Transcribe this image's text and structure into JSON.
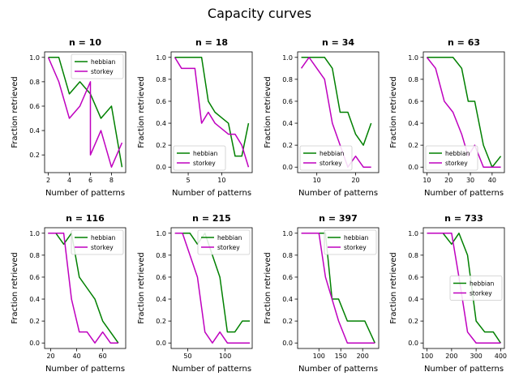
{
  "figure": {
    "title": "Capacity curves"
  },
  "colors": {
    "hebbian": "#008000",
    "storkey": "#bf00bf"
  },
  "chart_data": [
    {
      "type": "line",
      "title": "n = 10",
      "xlabel": "Number of patterns",
      "ylabel": "Fraction retrieved",
      "xlim": [
        1.65,
        9.35
      ],
      "ylim": [
        0.055,
        1.045
      ],
      "xticks": [
        2,
        4,
        6,
        8
      ],
      "yticks": [
        0.2,
        0.4,
        0.6,
        0.8,
        1.0
      ],
      "legend": "upper right",
      "series": [
        {
          "name": "hebbian",
          "x": [
            2,
            3,
            4,
            5,
            6,
            7,
            8,
            9
          ],
          "y": [
            1.0,
            1.0,
            0.7,
            0.8,
            0.7,
            0.5,
            0.6,
            0.1
          ]
        },
        {
          "name": "storkey",
          "x": [
            2,
            3,
            4,
            5,
            6,
            6,
            7,
            8,
            9
          ],
          "y": [
            1.0,
            0.8,
            0.5,
            0.6,
            0.8,
            0.2,
            0.4,
            0.1,
            0.3
          ]
        }
      ]
    },
    {
      "type": "line",
      "title": "n = 18",
      "xlabel": "Number of patterns",
      "ylabel": "Fraction retrieved",
      "xlim": [
        2.45,
        14.55
      ],
      "ylim": [
        -0.05,
        1.05
      ],
      "xticks": [
        5,
        10
      ],
      "yticks": [
        0.0,
        0.2,
        0.4,
        0.6,
        0.8,
        1.0
      ],
      "legend": "lower left",
      "series": [
        {
          "name": "hebbian",
          "x": [
            3,
            4,
            5,
            6,
            7,
            8,
            9,
            10,
            11,
            12,
            13,
            14
          ],
          "y": [
            1.0,
            1.0,
            1.0,
            1.0,
            1.0,
            0.6,
            0.5,
            0.45,
            0.4,
            0.1,
            0.1,
            0.4
          ]
        },
        {
          "name": "storkey",
          "x": [
            3,
            4,
            5,
            6,
            7,
            8,
            9,
            10,
            11,
            12,
            13,
            14
          ],
          "y": [
            1.0,
            0.9,
            0.9,
            0.9,
            0.4,
            0.5,
            0.4,
            0.35,
            0.3,
            0.3,
            0.2,
            0.0
          ]
        }
      ]
    },
    {
      "type": "line",
      "title": "n = 34",
      "xlabel": "Number of patterns",
      "ylabel": "Fraction retrieved",
      "xlim": [
        5.05,
        25.95
      ],
      "ylim": [
        -0.05,
        1.05
      ],
      "xticks": [
        10,
        20
      ],
      "yticks": [
        0.0,
        0.2,
        0.4,
        0.6,
        0.8,
        1.0
      ],
      "legend": "lower left",
      "series": [
        {
          "name": "hebbian",
          "x": [
            6,
            8,
            10,
            12,
            14,
            16,
            18,
            20,
            22,
            24
          ],
          "y": [
            1.0,
            1.0,
            1.0,
            1.0,
            0.9,
            0.5,
            0.5,
            0.3,
            0.2,
            0.4
          ]
        },
        {
          "name": "storkey",
          "x": [
            6,
            8,
            10,
            12,
            14,
            16,
            18,
            20,
            22,
            24
          ],
          "y": [
            0.9,
            1.0,
            0.9,
            0.8,
            0.4,
            0.2,
            0.0,
            0.1,
            0.0,
            0.0
          ]
        }
      ]
    },
    {
      "type": "line",
      "title": "n = 63",
      "xlabel": "Number of patterns",
      "ylabel": "Fraction retrieved",
      "xlim": [
        8.35,
        45.65
      ],
      "ylim": [
        -0.05,
        1.05
      ],
      "xticks": [
        10,
        20,
        30,
        40
      ],
      "yticks": [
        0.0,
        0.2,
        0.4,
        0.6,
        0.8,
        1.0
      ],
      "legend": "lower left",
      "series": [
        {
          "name": "hebbian",
          "x": [
            10,
            14,
            18,
            22,
            26,
            29,
            32,
            36,
            40,
            44
          ],
          "y": [
            1.0,
            1.0,
            1.0,
            1.0,
            0.9,
            0.6,
            0.6,
            0.2,
            0.0,
            0.1
          ]
        },
        {
          "name": "storkey",
          "x": [
            10,
            14,
            18,
            22,
            26,
            29,
            32,
            36,
            40,
            44
          ],
          "y": [
            1.0,
            0.9,
            0.6,
            0.5,
            0.3,
            0.1,
            0.2,
            0.0,
            0.0,
            0.0
          ]
        }
      ]
    },
    {
      "type": "line",
      "title": "n = 116",
      "xlabel": "Number of patterns",
      "ylabel": "Fraction retrieved",
      "xlim": [
        15.3,
        77.7
      ],
      "ylim": [
        -0.05,
        1.05
      ],
      "xticks": [
        20,
        40,
        60
      ],
      "yticks": [
        0.0,
        0.2,
        0.4,
        0.6,
        0.8,
        1.0
      ],
      "legend": "upper right",
      "series": [
        {
          "name": "hebbian",
          "x": [
            18,
            24,
            30,
            36,
            42,
            48,
            54,
            60,
            66,
            72
          ],
          "y": [
            1.0,
            1.0,
            0.9,
            1.0,
            0.6,
            0.5,
            0.4,
            0.2,
            0.1,
            0.0
          ]
        },
        {
          "name": "storkey",
          "x": [
            18,
            24,
            30,
            36,
            42,
            48,
            54,
            60,
            66,
            72
          ],
          "y": [
            1.0,
            1.0,
            1.0,
            0.4,
            0.1,
            0.1,
            0.0,
            0.1,
            0.0,
            0.0
          ]
        }
      ]
    },
    {
      "type": "line",
      "title": "n = 215",
      "xlabel": "Number of patterns",
      "ylabel": "Fraction retrieved",
      "xlim": [
        27.8,
        136.2
      ],
      "ylim": [
        -0.05,
        1.05
      ],
      "xticks": [
        50,
        100
      ],
      "yticks": [
        0.0,
        0.2,
        0.4,
        0.6,
        0.8,
        1.0
      ],
      "legend": "upper right",
      "series": [
        {
          "name": "hebbian",
          "x": [
            33,
            43,
            53,
            63,
            73,
            83,
            93,
            103,
            113,
            123,
            133
          ],
          "y": [
            1.0,
            1.0,
            1.0,
            0.9,
            1.0,
            0.8,
            0.6,
            0.1,
            0.1,
            0.2,
            0.2
          ]
        },
        {
          "name": "storkey",
          "x": [
            33,
            43,
            53,
            63,
            73,
            83,
            93,
            103,
            113,
            123,
            133
          ],
          "y": [
            1.0,
            1.0,
            0.8,
            0.6,
            0.1,
            0.0,
            0.1,
            0.0,
            0.0,
            0.0,
            0.0
          ]
        }
      ]
    },
    {
      "type": "line",
      "title": "n = 397",
      "xlabel": "Number of patterns",
      "ylabel": "Fraction retrieved",
      "xlim": [
        51.3,
        236.7
      ],
      "ylim": [
        -0.05,
        1.05
      ],
      "xticks": [
        50,
        100,
        150,
        200
      ],
      "yticks": [
        0.0,
        0.2,
        0.4,
        0.6,
        0.8,
        1.0
      ],
      "legend": "upper right",
      "series": [
        {
          "name": "hebbian",
          "x": [
            60,
            80,
            100,
            115,
            130,
            145,
            165,
            185,
            205,
            228
          ],
          "y": [
            1.0,
            1.0,
            1.0,
            1.0,
            0.4,
            0.4,
            0.2,
            0.2,
            0.2,
            0.0
          ]
        },
        {
          "name": "storkey",
          "x": [
            60,
            80,
            100,
            115,
            130,
            145,
            165,
            185,
            205,
            228
          ],
          "y": [
            1.0,
            1.0,
            1.0,
            0.6,
            0.4,
            0.2,
            0.0,
            0.0,
            0.0,
            0.0
          ]
        }
      ]
    },
    {
      "type": "line",
      "title": "n = 733",
      "xlabel": "Number of patterns",
      "ylabel": "Fraction retrieved",
      "xlim": [
        84.8,
        415.2
      ],
      "ylim": [
        -0.05,
        1.05
      ],
      "xticks": [
        100,
        200,
        300,
        400
      ],
      "yticks": [
        0.0,
        0.2,
        0.4,
        0.6,
        0.8,
        1.0
      ],
      "legend": "center right",
      "series": [
        {
          "name": "hebbian",
          "x": [
            100,
            165,
            200,
            230,
            265,
            300,
            335,
            370,
            400
          ],
          "y": [
            1.0,
            1.0,
            0.9,
            1.0,
            0.8,
            0.2,
            0.1,
            0.1,
            0.0
          ]
        },
        {
          "name": "storkey",
          "x": [
            100,
            165,
            200,
            230,
            265,
            300,
            335,
            370,
            400
          ],
          "y": [
            1.0,
            1.0,
            1.0,
            0.6,
            0.1,
            0.0,
            0.0,
            0.0,
            0.0
          ]
        }
      ]
    }
  ]
}
